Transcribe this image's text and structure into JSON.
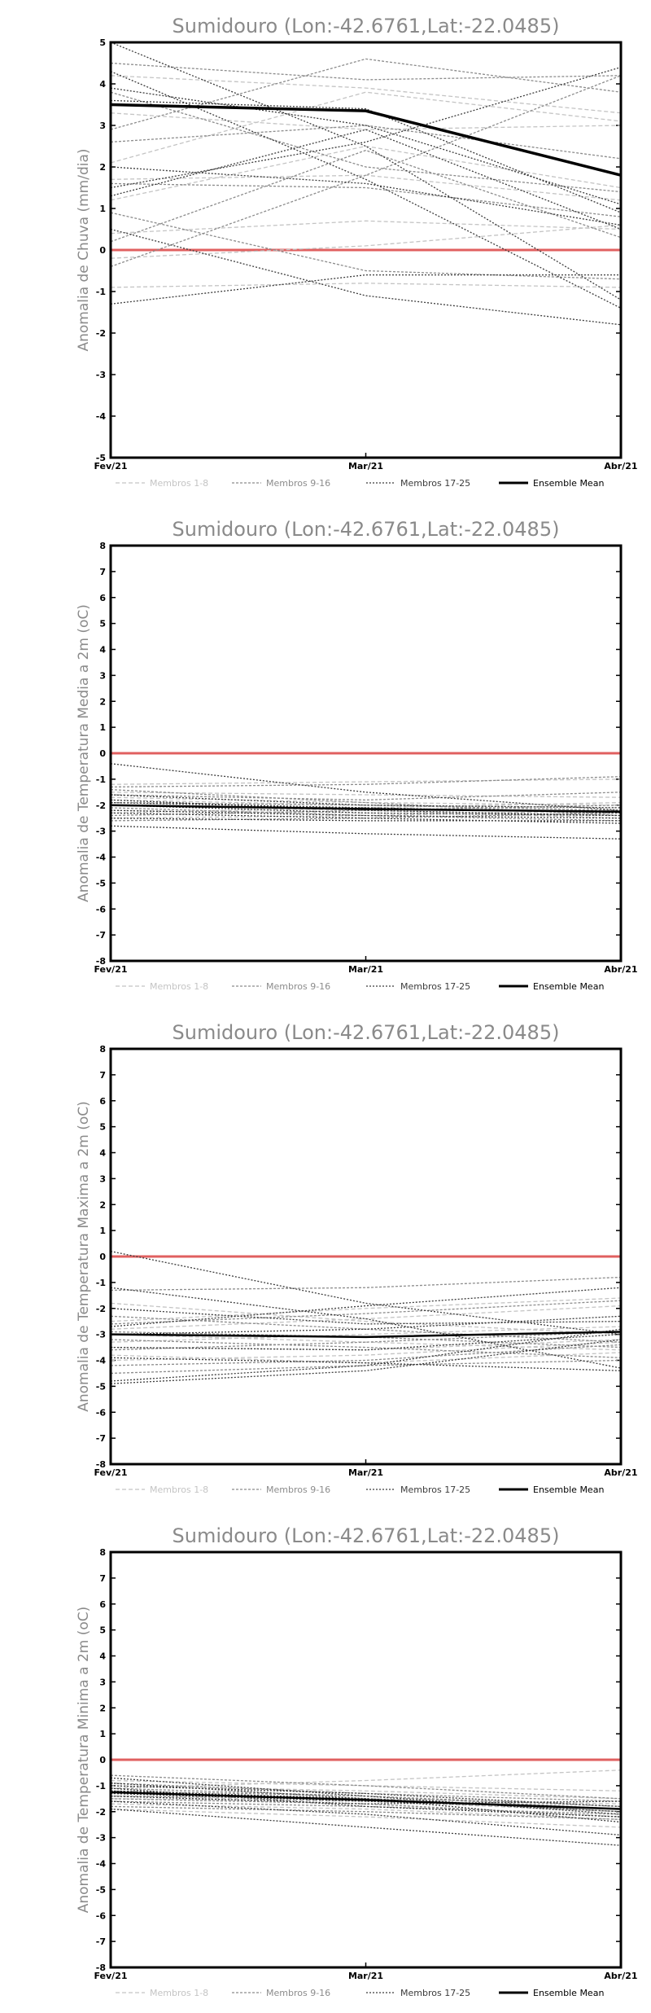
{
  "chart_data": [
    {
      "type": "line",
      "title": "Sumidouro (Lon:-42.6761,Lat:-22.0485)",
      "ylabel": "Anomalia de Chuva (mm/dia)",
      "categories": [
        "Fev/21",
        "Mar/21",
        "Abr/21"
      ],
      "ylim": [
        -5,
        5
      ],
      "yticks": [
        -5,
        -4,
        -3,
        -2,
        -1,
        0,
        1,
        2,
        3,
        4,
        5
      ],
      "zero_line_color": "#e06060",
      "legend": {
        "position": "bottom",
        "entries": [
          "Membros 1-8",
          "Membros 9-16",
          "Membros 17-25",
          "Ensemble Mean"
        ]
      },
      "group_colors": {
        "Membros 1-8": "#c4c4c4",
        "Membros 9-16": "#8c8c8c",
        "Membros 17-25": "#3c3c3c",
        "Ensemble Mean": "#000000"
      },
      "series": [
        {
          "group": "Membros 1-8",
          "values": [
            2.1,
            3.8,
            3.1
          ]
        },
        {
          "group": "Membros 1-8",
          "values": [
            1.7,
            1.8,
            1.2
          ]
        },
        {
          "group": "Membros 1-8",
          "values": [
            -0.9,
            -0.8,
            -0.9
          ]
        },
        {
          "group": "Membros 1-8",
          "values": [
            0.4,
            0.7,
            0.5
          ]
        },
        {
          "group": "Membros 1-8",
          "values": [
            3.3,
            2.9,
            3.0
          ]
        },
        {
          "group": "Membros 1-8",
          "values": [
            4.2,
            3.9,
            3.3
          ]
        },
        {
          "group": "Membros 1-8",
          "values": [
            -0.2,
            0.1,
            0.6
          ]
        },
        {
          "group": "Membros 1-8",
          "values": [
            1.2,
            2.5,
            1.5
          ]
        },
        {
          "group": "Membros 9-16",
          "values": [
            2.9,
            4.6,
            3.8
          ]
        },
        {
          "group": "Membros 9-16",
          "values": [
            0.2,
            2.4,
            0.3
          ]
        },
        {
          "group": "Membros 9-16",
          "values": [
            1.6,
            1.5,
            0.8
          ]
        },
        {
          "group": "Membros 9-16",
          "values": [
            4.5,
            4.1,
            4.2
          ]
        },
        {
          "group": "Membros 9-16",
          "values": [
            -0.4,
            1.8,
            4.2
          ]
        },
        {
          "group": "Membros 9-16",
          "values": [
            3.8,
            2.0,
            1.4
          ]
        },
        {
          "group": "Membros 9-16",
          "values": [
            2.6,
            3.0,
            2.2
          ]
        },
        {
          "group": "Membros 9-16",
          "values": [
            0.9,
            -0.5,
            -0.7
          ]
        },
        {
          "group": "Membros 17-25",
          "values": [
            5.0,
            2.5,
            -1.2
          ]
        },
        {
          "group": "Membros 17-25",
          "values": [
            0.5,
            -1.1,
            -1.8
          ]
        },
        {
          "group": "Membros 17-25",
          "values": [
            -1.3,
            -0.6,
            -0.6
          ]
        },
        {
          "group": "Membros 17-25",
          "values": [
            1.3,
            2.9,
            0.5
          ]
        },
        {
          "group": "Membros 17-25",
          "values": [
            3.9,
            3.0,
            1.1
          ]
        },
        {
          "group": "Membros 17-25",
          "values": [
            2.0,
            1.6,
            0.6
          ]
        },
        {
          "group": "Membros 17-25",
          "values": [
            4.3,
            1.7,
            -1.4
          ]
        },
        {
          "group": "Membros 17-25",
          "values": [
            3.6,
            3.4,
            0.9
          ]
        },
        {
          "group": "Membros 17-25",
          "values": [
            1.5,
            2.6,
            4.4
          ]
        },
        {
          "group": "Ensemble Mean",
          "values": [
            3.5,
            3.35,
            1.8
          ]
        }
      ]
    },
    {
      "type": "line",
      "title": "Sumidouro (Lon:-42.6761,Lat:-22.0485)",
      "ylabel": "Anomalia de Temperatura Media a 2m (oC)",
      "categories": [
        "Fev/21",
        "Mar/21",
        "Abr/21"
      ],
      "ylim": [
        -8,
        8
      ],
      "yticks": [
        -8,
        -7,
        -6,
        -5,
        -4,
        -3,
        -2,
        -1,
        0,
        1,
        2,
        3,
        4,
        5,
        6,
        7,
        8
      ],
      "zero_line_color": "#e06060",
      "legend": {
        "position": "bottom",
        "entries": [
          "Membros 1-8",
          "Membros 9-16",
          "Membros 17-25",
          "Ensemble Mean"
        ]
      },
      "group_colors": {
        "Membros 1-8": "#c4c4c4",
        "Membros 9-16": "#8c8c8c",
        "Membros 17-25": "#3c3c3c",
        "Ensemble Mean": "#000000"
      },
      "series": [
        {
          "group": "Membros 1-8",
          "values": [
            -1.8,
            -2.0,
            -2.1
          ]
        },
        {
          "group": "Membros 1-8",
          "values": [
            -2.2,
            -2.3,
            -2.4
          ]
        },
        {
          "group": "Membros 1-8",
          "values": [
            -1.5,
            -1.6,
            -1.7
          ]
        },
        {
          "group": "Membros 1-8",
          "values": [
            -2.5,
            -2.4,
            -2.2
          ]
        },
        {
          "group": "Membros 1-8",
          "values": [
            -1.2,
            -1.1,
            -1.0
          ]
        },
        {
          "group": "Membros 1-8",
          "values": [
            -2.0,
            -2.2,
            -2.5
          ]
        },
        {
          "group": "Membros 1-8",
          "values": [
            -1.7,
            -1.9,
            -2.0
          ]
        },
        {
          "group": "Membros 1-8",
          "values": [
            -2.3,
            -2.1,
            -1.9
          ]
        },
        {
          "group": "Membros 9-16",
          "values": [
            -1.3,
            -1.2,
            -0.9
          ]
        },
        {
          "group": "Membros 9-16",
          "values": [
            -2.6,
            -2.5,
            -2.3
          ]
        },
        {
          "group": "Membros 9-16",
          "values": [
            -1.9,
            -2.0,
            -2.2
          ]
        },
        {
          "group": "Membros 9-16",
          "values": [
            -2.1,
            -2.4,
            -2.6
          ]
        },
        {
          "group": "Membros 9-16",
          "values": [
            -1.6,
            -1.8,
            -1.5
          ]
        },
        {
          "group": "Membros 9-16",
          "values": [
            -2.4,
            -2.2,
            -2.0
          ]
        },
        {
          "group": "Membros 9-16",
          "values": [
            -2.0,
            -2.1,
            -2.3
          ]
        },
        {
          "group": "Membros 9-16",
          "values": [
            -1.4,
            -1.9,
            -2.4
          ]
        },
        {
          "group": "Membros 17-25",
          "values": [
            -0.4,
            -1.5,
            -2.2
          ]
        },
        {
          "group": "Membros 17-25",
          "values": [
            -2.8,
            -3.1,
            -3.3
          ]
        },
        {
          "group": "Membros 17-25",
          "values": [
            -1.6,
            -2.0,
            -2.1
          ]
        },
        {
          "group": "Membros 17-25",
          "values": [
            -2.2,
            -2.4,
            -2.5
          ]
        },
        {
          "group": "Membros 17-25",
          "values": [
            -1.9,
            -2.1,
            -2.3
          ]
        },
        {
          "group": "Membros 17-25",
          "values": [
            -2.5,
            -2.6,
            -2.6
          ]
        },
        {
          "group": "Membros 17-25",
          "values": [
            -1.8,
            -2.2,
            -2.4
          ]
        },
        {
          "group": "Membros 17-25",
          "values": [
            -2.3,
            -2.5,
            -2.7
          ]
        },
        {
          "group": "Membros 17-25",
          "values": [
            -2.0,
            -2.3,
            -2.4
          ]
        },
        {
          "group": "Ensemble Mean",
          "values": [
            -2.0,
            -2.15,
            -2.25
          ]
        }
      ]
    },
    {
      "type": "line",
      "title": "Sumidouro (Lon:-42.6761,Lat:-22.0485)",
      "ylabel": "Anomalia de Temperatura Maxima a 2m (oC)",
      "categories": [
        "Fev/21",
        "Mar/21",
        "Abr/21"
      ],
      "ylim": [
        -8,
        8
      ],
      "yticks": [
        -8,
        -7,
        -6,
        -5,
        -4,
        -3,
        -2,
        -1,
        0,
        1,
        2,
        3,
        4,
        5,
        6,
        7,
        8
      ],
      "zero_line_color": "#e06060",
      "legend": {
        "position": "bottom",
        "entries": [
          "Membros 1-8",
          "Membros 9-16",
          "Membros 17-25",
          "Ensemble Mean"
        ]
      },
      "group_colors": {
        "Membros 1-8": "#c4c4c4",
        "Membros 9-16": "#8c8c8c",
        "Membros 17-25": "#3c3c3c",
        "Ensemble Mean": "#000000"
      },
      "series": [
        {
          "group": "Membros 1-8",
          "values": [
            -2.5,
            -2.0,
            -1.6
          ]
        },
        {
          "group": "Membros 1-8",
          "values": [
            -3.5,
            -3.6,
            -3.2
          ]
        },
        {
          "group": "Membros 1-8",
          "values": [
            -1.8,
            -2.5,
            -3.0
          ]
        },
        {
          "group": "Membros 1-8",
          "values": [
            -4.0,
            -3.8,
            -3.3
          ]
        },
        {
          "group": "Membros 1-8",
          "values": [
            -3.0,
            -3.3,
            -3.6
          ]
        },
        {
          "group": "Membros 1-8",
          "values": [
            -2.8,
            -2.4,
            -1.9
          ]
        },
        {
          "group": "Membros 1-8",
          "values": [
            -3.8,
            -4.1,
            -3.7
          ]
        },
        {
          "group": "Membros 1-8",
          "values": [
            -3.3,
            -3.0,
            -2.7
          ]
        },
        {
          "group": "Membros 9-16",
          "values": [
            -1.3,
            -1.2,
            -0.8
          ]
        },
        {
          "group": "Membros 9-16",
          "values": [
            -4.2,
            -4.0,
            -3.4
          ]
        },
        {
          "group": "Membros 9-16",
          "values": [
            -2.3,
            -2.8,
            -3.3
          ]
        },
        {
          "group": "Membros 9-16",
          "values": [
            -3.6,
            -3.3,
            -2.9
          ]
        },
        {
          "group": "Membros 9-16",
          "values": [
            -2.9,
            -3.1,
            -3.5
          ]
        },
        {
          "group": "Membros 9-16",
          "values": [
            -4.5,
            -4.2,
            -4.0
          ]
        },
        {
          "group": "Membros 9-16",
          "values": [
            -3.2,
            -3.5,
            -3.9
          ]
        },
        {
          "group": "Membros 9-16",
          "values": [
            -2.6,
            -2.2,
            -1.7
          ]
        },
        {
          "group": "Membros 17-25",
          "values": [
            0.2,
            -1.8,
            -3.0
          ]
        },
        {
          "group": "Membros 17-25",
          "values": [
            -4.8,
            -4.2,
            -2.8
          ]
        },
        {
          "group": "Membros 17-25",
          "values": [
            -4.9,
            -4.4,
            -3.2
          ]
        },
        {
          "group": "Membros 17-25",
          "values": [
            -2.0,
            -2.6,
            -2.5
          ]
        },
        {
          "group": "Membros 17-25",
          "values": [
            -1.2,
            -2.4,
            -4.3
          ]
        },
        {
          "group": "Membros 17-25",
          "values": [
            -3.0,
            -2.8,
            -2.3
          ]
        },
        {
          "group": "Membros 17-25",
          "values": [
            -3.9,
            -4.1,
            -4.4
          ]
        },
        {
          "group": "Membros 17-25",
          "values": [
            -2.7,
            -1.9,
            -1.2
          ]
        },
        {
          "group": "Membros 17-25",
          "values": [
            -3.5,
            -3.6,
            -3.0
          ]
        },
        {
          "group": "Ensemble Mean",
          "values": [
            -3.0,
            -3.1,
            -2.9
          ]
        }
      ]
    },
    {
      "type": "line",
      "title": "Sumidouro (Lon:-42.6761,Lat:-22.0485)",
      "ylabel": "Anomalia de Temperatura Minima a 2m (oC)",
      "categories": [
        "Fev/21",
        "Mar/21",
        "Abr/21"
      ],
      "ylim": [
        -8,
        8
      ],
      "yticks": [
        -8,
        -7,
        -6,
        -5,
        -4,
        -3,
        -2,
        -1,
        0,
        1,
        2,
        3,
        4,
        5,
        6,
        7,
        8
      ],
      "zero_line_color": "#e06060",
      "legend": {
        "position": "bottom",
        "entries": [
          "Membros 1-8",
          "Membros 9-16",
          "Membros 17-25",
          "Ensemble Mean"
        ]
      },
      "group_colors": {
        "Membros 1-8": "#c4c4c4",
        "Membros 9-16": "#8c8c8c",
        "Membros 17-25": "#3c3c3c",
        "Ensemble Mean": "#000000"
      },
      "series": [
        {
          "group": "Membros 1-8",
          "values": [
            -1.1,
            -0.8,
            -0.4
          ]
        },
        {
          "group": "Membros 1-8",
          "values": [
            -1.5,
            -1.6,
            -1.9
          ]
        },
        {
          "group": "Membros 1-8",
          "values": [
            -1.9,
            -2.2,
            -2.6
          ]
        },
        {
          "group": "Membros 1-8",
          "values": [
            -0.8,
            -1.0,
            -1.2
          ]
        },
        {
          "group": "Membros 1-8",
          "values": [
            -1.3,
            -1.5,
            -1.7
          ]
        },
        {
          "group": "Membros 1-8",
          "values": [
            -1.7,
            -1.9,
            -2.3
          ]
        },
        {
          "group": "Membros 1-8",
          "values": [
            -1.0,
            -1.2,
            -1.5
          ]
        },
        {
          "group": "Membros 1-8",
          "values": [
            -1.4,
            -1.6,
            -2.0
          ]
        },
        {
          "group": "Membros 9-16",
          "values": [
            -0.6,
            -1.0,
            -1.5
          ]
        },
        {
          "group": "Membros 9-16",
          "values": [
            -1.6,
            -1.8,
            -2.1
          ]
        },
        {
          "group": "Membros 9-16",
          "values": [
            -1.2,
            -1.4,
            -1.8
          ]
        },
        {
          "group": "Membros 9-16",
          "values": [
            -1.8,
            -2.0,
            -2.3
          ]
        },
        {
          "group": "Membros 9-16",
          "values": [
            -0.9,
            -1.3,
            -1.6
          ]
        },
        {
          "group": "Membros 9-16",
          "values": [
            -1.4,
            -1.5,
            -2.0
          ]
        },
        {
          "group": "Membros 9-16",
          "values": [
            -1.1,
            -1.4,
            -1.9
          ]
        },
        {
          "group": "Membros 9-16",
          "values": [
            -1.5,
            -1.7,
            -2.2
          ]
        },
        {
          "group": "Membros 17-25",
          "values": [
            -1.0,
            -1.3,
            -1.8
          ]
        },
        {
          "group": "Membros 17-25",
          "values": [
            -1.9,
            -2.6,
            -3.3
          ]
        },
        {
          "group": "Membros 17-25",
          "values": [
            -1.2,
            -1.5,
            -2.0
          ]
        },
        {
          "group": "Membros 17-25",
          "values": [
            -0.7,
            -1.4,
            -2.1
          ]
        },
        {
          "group": "Membros 17-25",
          "values": [
            -1.6,
            -2.1,
            -2.9
          ]
        },
        {
          "group": "Membros 17-25",
          "values": [
            -1.3,
            -1.6,
            -1.9
          ]
        },
        {
          "group": "Membros 17-25",
          "values": [
            -1.1,
            -1.8,
            -2.2
          ]
        },
        {
          "group": "Membros 17-25",
          "values": [
            -1.4,
            -1.7,
            -1.6
          ]
        },
        {
          "group": "Membros 17-25",
          "values": [
            -0.9,
            -1.5,
            -2.4
          ]
        },
        {
          "group": "Ensemble Mean",
          "values": [
            -1.25,
            -1.55,
            -1.9
          ]
        }
      ]
    }
  ]
}
